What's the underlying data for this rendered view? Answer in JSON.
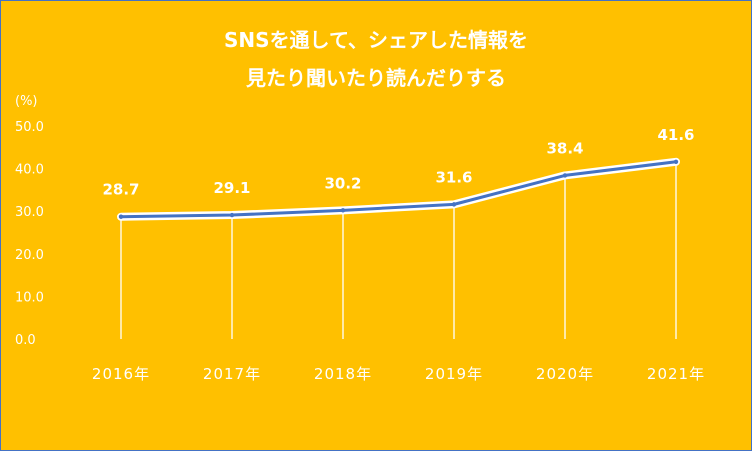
{
  "chart_data": {
    "type": "line",
    "title_lines": [
      "SNSを通して、シェアした情報を",
      "見たり聞いたり読んだりする"
    ],
    "unit_label": "(%)",
    "categories": [
      "2016年",
      "2017年",
      "2018年",
      "2019年",
      "2020年",
      "2021年"
    ],
    "values": [
      28.7,
      29.1,
      30.2,
      31.6,
      38.4,
      41.6
    ],
    "data_labels": [
      "28.7",
      "29.1",
      "30.2",
      "31.6",
      "38.4",
      "41.6"
    ],
    "ylim": [
      0,
      50
    ],
    "yticks": [
      "0.0",
      "10.0",
      "20.0",
      "30.0",
      "40.0",
      "50.0"
    ],
    "grid": false,
    "drop_lines": true,
    "colors": {
      "background": "#ffc000",
      "line": "#4472c4",
      "line_outline": "#ffffff",
      "text": "#ffffff"
    }
  }
}
